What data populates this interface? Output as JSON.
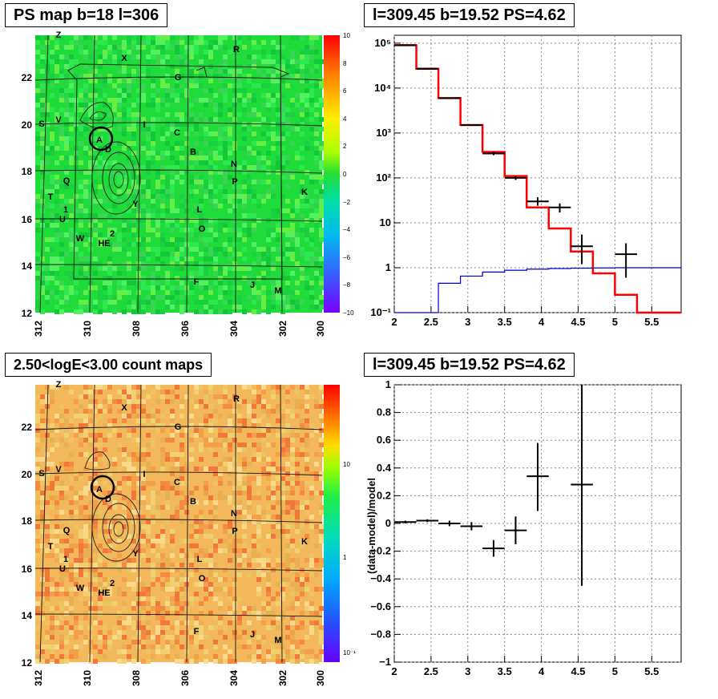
{
  "panels": {
    "ps_map": {
      "title": "PS map b=18 l=306",
      "colorbar_ticks": [
        "10",
        "8",
        "6",
        "4",
        "2",
        "0",
        "−2",
        "−4",
        "−6",
        "−8",
        "−10"
      ],
      "yticks": [
        "22",
        "20",
        "18",
        "16",
        "14",
        "12"
      ],
      "xticks": [
        "312",
        "310",
        "308",
        "306",
        "304",
        "302",
        "300"
      ],
      "colors": {
        "low": "#3b7bff",
        "mid": "#22dd33",
        "high": "#ff2200"
      }
    },
    "count_map": {
      "title": "2.50<logE<3.00 count maps",
      "colorbar_ticks": [
        "10",
        "1",
        "10⁻¹"
      ],
      "yticks": [
        "22",
        "20",
        "18",
        "16",
        "14",
        "12"
      ],
      "xticks": [
        "312",
        "310",
        "308",
        "306",
        "304",
        "302",
        "300"
      ]
    },
    "spectrum": {
      "title": "l=309.45 b=19.52 PS=4.62"
    },
    "residual": {
      "title": "l=309.45 b=19.52 PS=4.62"
    }
  },
  "map_labels": [
    {
      "text": "Z"
    },
    {
      "text": "X"
    },
    {
      "text": "R"
    },
    {
      "text": "G"
    },
    {
      "text": "S"
    },
    {
      "text": "V"
    },
    {
      "text": "I"
    },
    {
      "text": "A"
    },
    {
      "text": "D"
    },
    {
      "text": "C"
    },
    {
      "text": "B"
    },
    {
      "text": "N"
    },
    {
      "text": "Q"
    },
    {
      "text": "P"
    },
    {
      "text": "K"
    },
    {
      "text": "T"
    },
    {
      "text": "1"
    },
    {
      "text": "U"
    },
    {
      "text": "Y"
    },
    {
      "text": "L"
    },
    {
      "text": "W"
    },
    {
      "text": "2"
    },
    {
      "text": "HE"
    },
    {
      "text": "O"
    },
    {
      "text": "F"
    },
    {
      "text": "J"
    },
    {
      "text": "M"
    }
  ],
  "chart_data": [
    {
      "type": "line",
      "name": "spectrum",
      "title": "l=309.45 b=19.52 PS=4.62",
      "xlabel": "",
      "ylabel": "",
      "xlim": [
        2,
        5.9
      ],
      "ylim": [
        0.1,
        150000
      ],
      "yscale": "log",
      "xticks": [
        "2",
        "2.5",
        "3",
        "3.5",
        "4",
        "4.5",
        "5",
        "5.5"
      ],
      "yticks": [
        "10⁻¹",
        "1",
        "10",
        "10²",
        "10³",
        "10⁴",
        "10⁵"
      ],
      "grid": true,
      "series": [
        {
          "kind": "step",
          "color": "#ff0000",
          "edges": [
            2,
            2.3,
            2.6,
            2.9,
            3.2,
            3.5,
            3.8,
            4.1,
            4.4,
            4.7,
            5.0,
            5.3,
            5.9
          ],
          "values": [
            90000,
            27000,
            6000,
            1500,
            380,
            110,
            22,
            7.5,
            2.3,
            0.75,
            0.25,
            0.1
          ]
        },
        {
          "kind": "step",
          "color": "#0000cc",
          "edges": [
            2,
            2.3,
            2.6,
            2.9,
            3.2,
            3.5,
            3.8,
            4.1,
            4.4,
            4.7,
            5.0,
            5.3,
            5.9
          ],
          "values": [
            0.1,
            0.1,
            0.45,
            0.65,
            0.8,
            0.88,
            0.93,
            0.96,
            0.98,
            0.99,
            1.0,
            1.0
          ]
        },
        {
          "kind": "points",
          "color": "#000000",
          "points": [
            {
              "x": 2.15,
              "y": 90000,
              "xerr": 0.15,
              "ylo": 89000,
              "yhi": 91000
            },
            {
              "x": 2.45,
              "y": 27000,
              "xerr": 0.15,
              "ylo": 26500,
              "yhi": 27500
            },
            {
              "x": 2.75,
              "y": 6000,
              "xerr": 0.15,
              "ylo": 5900,
              "yhi": 6100
            },
            {
              "x": 3.05,
              "y": 1500,
              "xerr": 0.15,
              "ylo": 1450,
              "yhi": 1550
            },
            {
              "x": 3.35,
              "y": 350,
              "xerr": 0.15,
              "ylo": 320,
              "yhi": 380
            },
            {
              "x": 3.65,
              "y": 100,
              "xerr": 0.15,
              "ylo": 90,
              "yhi": 110
            },
            {
              "x": 3.95,
              "y": 30,
              "xerr": 0.15,
              "ylo": 24,
              "yhi": 37
            },
            {
              "x": 4.25,
              "y": 22,
              "xerr": 0.15,
              "ylo": 17,
              "yhi": 27
            },
            {
              "x": 4.55,
              "y": 3.0,
              "xerr": 0.15,
              "ylo": 1.2,
              "yhi": 5.5
            },
            {
              "x": 5.15,
              "y": 2.0,
              "xerr": 0.15,
              "ylo": 0.6,
              "yhi": 3.5
            }
          ]
        }
      ]
    },
    {
      "type": "scatter",
      "name": "residual",
      "title": "l=309.45 b=19.52 PS=4.62",
      "xlabel": "",
      "ylabel": "(data-model)/model",
      "xlim": [
        2,
        5.9
      ],
      "ylim": [
        -1,
        1
      ],
      "xticks": [
        "2",
        "2.5",
        "3",
        "3.5",
        "4",
        "4.5",
        "5",
        "5.5"
      ],
      "yticks": [
        "−1",
        "−0.8",
        "−0.6",
        "−0.4",
        "−0.2",
        "0",
        "0.2",
        "0.4",
        "0.6",
        "0.8",
        "1"
      ],
      "grid": true,
      "points": [
        {
          "x": 2.15,
          "y": 0.01,
          "xerr": 0.15,
          "ylo": 0.0,
          "yhi": 0.02
        },
        {
          "x": 2.45,
          "y": 0.02,
          "xerr": 0.15,
          "ylo": 0.01,
          "yhi": 0.03
        },
        {
          "x": 2.75,
          "y": 0.0,
          "xerr": 0.15,
          "ylo": -0.02,
          "yhi": 0.02
        },
        {
          "x": 3.05,
          "y": -0.02,
          "xerr": 0.15,
          "ylo": -0.05,
          "yhi": 0.01
        },
        {
          "x": 3.35,
          "y": -0.18,
          "xerr": 0.15,
          "ylo": -0.24,
          "yhi": -0.12
        },
        {
          "x": 3.65,
          "y": -0.05,
          "xerr": 0.15,
          "ylo": -0.15,
          "yhi": 0.05
        },
        {
          "x": 3.95,
          "y": 0.34,
          "xerr": 0.15,
          "ylo": 0.09,
          "yhi": 0.58
        },
        {
          "x": 4.55,
          "y": 0.28,
          "xerr": 0.15,
          "ylo": -0.45,
          "yhi": 1.0
        }
      ]
    }
  ]
}
